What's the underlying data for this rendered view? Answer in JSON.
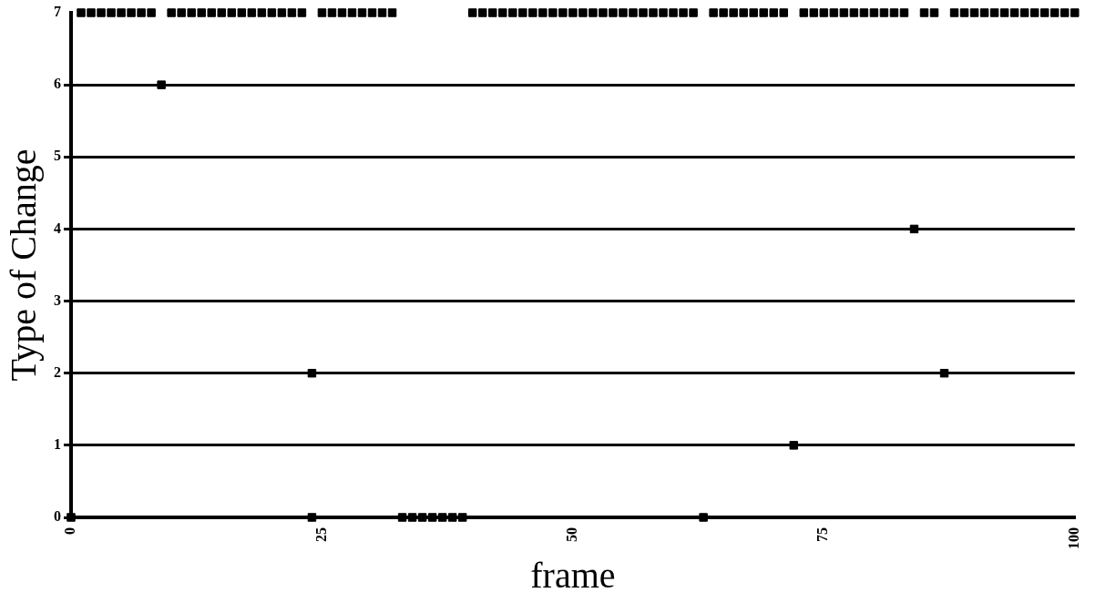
{
  "chart_data": {
    "type": "scatter",
    "xlabel": "frame",
    "ylabel": "Type of Change",
    "x": [
      0,
      1,
      2,
      3,
      4,
      5,
      6,
      7,
      8,
      9,
      10,
      11,
      12,
      13,
      14,
      15,
      16,
      17,
      18,
      19,
      20,
      21,
      22,
      23,
      24,
      25,
      26,
      27,
      28,
      29,
      30,
      31,
      32,
      33,
      34,
      35,
      36,
      37,
      38,
      39,
      40,
      41,
      42,
      43,
      44,
      45,
      46,
      47,
      48,
      49,
      50,
      51,
      52,
      53,
      54,
      55,
      56,
      57,
      58,
      59,
      60,
      61,
      62,
      63,
      64,
      65,
      66,
      67,
      68,
      69,
      70,
      71,
      72,
      73,
      74,
      75,
      76,
      77,
      78,
      79,
      80,
      81,
      82,
      83,
      84,
      85,
      86,
      87,
      88,
      89,
      90,
      91,
      92,
      93,
      94,
      95,
      96,
      97,
      98,
      99,
      100,
      24
    ],
    "values": [
      0,
      7,
      7,
      7,
      7,
      7,
      7,
      7,
      7,
      6,
      7,
      7,
      7,
      7,
      7,
      7,
      7,
      7,
      7,
      7,
      7,
      7,
      7,
      7,
      0,
      7,
      7,
      7,
      7,
      7,
      7,
      7,
      7,
      0,
      0,
      0,
      0,
      0,
      0,
      0,
      7,
      7,
      7,
      7,
      7,
      7,
      7,
      7,
      7,
      7,
      7,
      7,
      7,
      7,
      7,
      7,
      7,
      7,
      7,
      7,
      7,
      7,
      7,
      0,
      7,
      7,
      7,
      7,
      7,
      7,
      7,
      7,
      1,
      7,
      7,
      7,
      7,
      7,
      7,
      7,
      7,
      7,
      7,
      7,
      4,
      7,
      7,
      2,
      7,
      7,
      7,
      7,
      7,
      7,
      7,
      7,
      7,
      7,
      7,
      7,
      7,
      2
    ],
    "color": "#000000",
    "marker": "square",
    "grid": "y",
    "xlim": [
      0,
      100
    ],
    "xticks": [
      0,
      25,
      50,
      75,
      100
    ],
    "ylim": [
      0,
      7
    ],
    "yticks": [
      0,
      1,
      2,
      3,
      4,
      5,
      6,
      7
    ]
  }
}
